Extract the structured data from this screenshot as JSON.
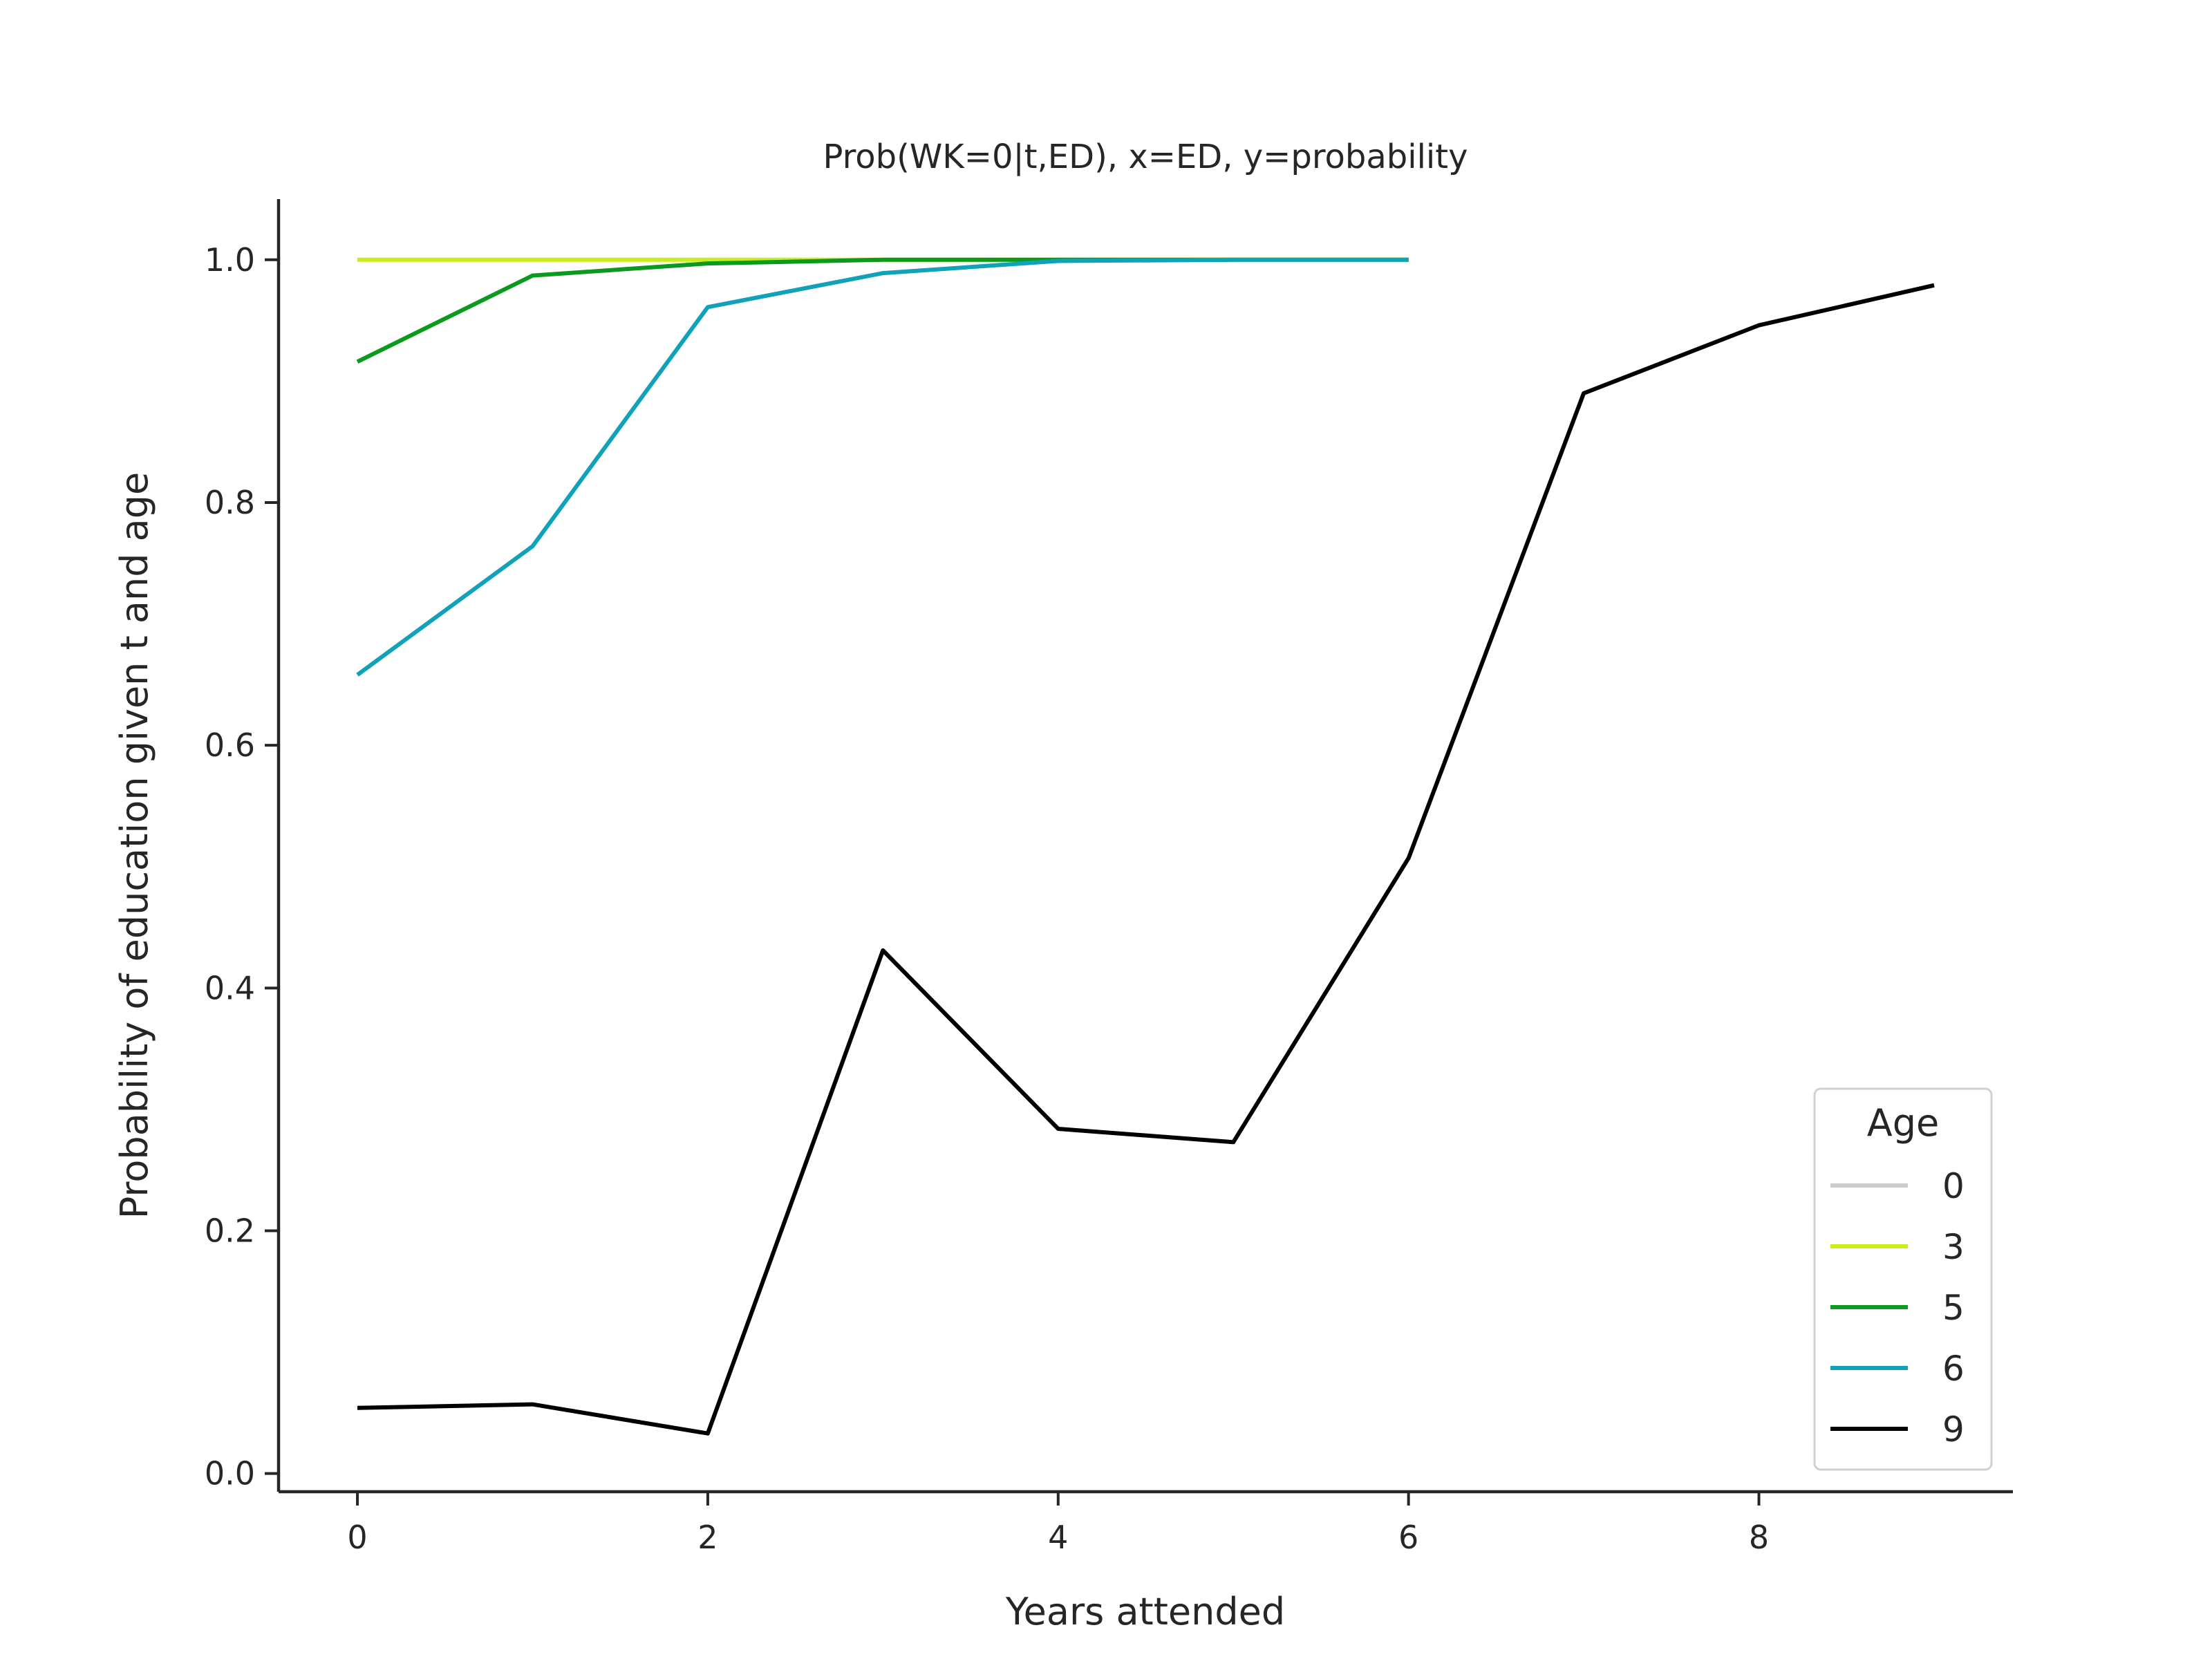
{
  "chart_data": {
    "type": "line",
    "title": "Prob(WK=0|t,ED), x=ED, y=probability",
    "xlabel": "Years attended",
    "ylabel": "Probability of education given t and age",
    "xlim": [
      -0.45,
      9.45
    ],
    "ylim": [
      -0.015,
      1.05
    ],
    "xticks": [
      0,
      2,
      4,
      6,
      8
    ],
    "xtick_labels": [
      "0",
      "2",
      "4",
      "6",
      "8"
    ],
    "yticks": [
      0.0,
      0.2,
      0.4,
      0.6,
      0.8,
      1.0
    ],
    "ytick_labels": [
      "0.0",
      "0.2",
      "0.4",
      "0.6",
      "0.8",
      "1.0"
    ],
    "grid": false,
    "legend": {
      "title": "Age",
      "placement": "lower-right"
    },
    "series": [
      {
        "name": "0",
        "color": "#cccccc",
        "x": [],
        "y": []
      },
      {
        "name": "3",
        "color": "#c8ee1c",
        "x": [
          0,
          1,
          2,
          3,
          4,
          5,
          6
        ],
        "y": [
          1.0,
          1.0,
          1.0,
          1.0,
          1.0,
          1.0,
          1.0
        ]
      },
      {
        "name": "5",
        "color": "#0c9a1e",
        "x": [
          0,
          1,
          2,
          3,
          4,
          5,
          6
        ],
        "y": [
          0.916,
          0.987,
          0.997,
          1.0,
          1.0,
          1.0,
          1.0
        ]
      },
      {
        "name": "6",
        "color": "#10a2b8",
        "x": [
          0,
          1,
          2,
          3,
          4,
          5,
          6
        ],
        "y": [
          0.658,
          0.764,
          0.961,
          0.989,
          0.999,
          1.0,
          1.0
        ]
      },
      {
        "name": "9",
        "color": "#000000",
        "x": [
          0,
          1,
          2,
          3,
          4,
          5,
          6,
          7,
          8,
          9
        ],
        "y": [
          0.054,
          0.057,
          0.033,
          0.431,
          0.284,
          0.273,
          0.507,
          0.89,
          0.946,
          0.979
        ]
      }
    ]
  }
}
